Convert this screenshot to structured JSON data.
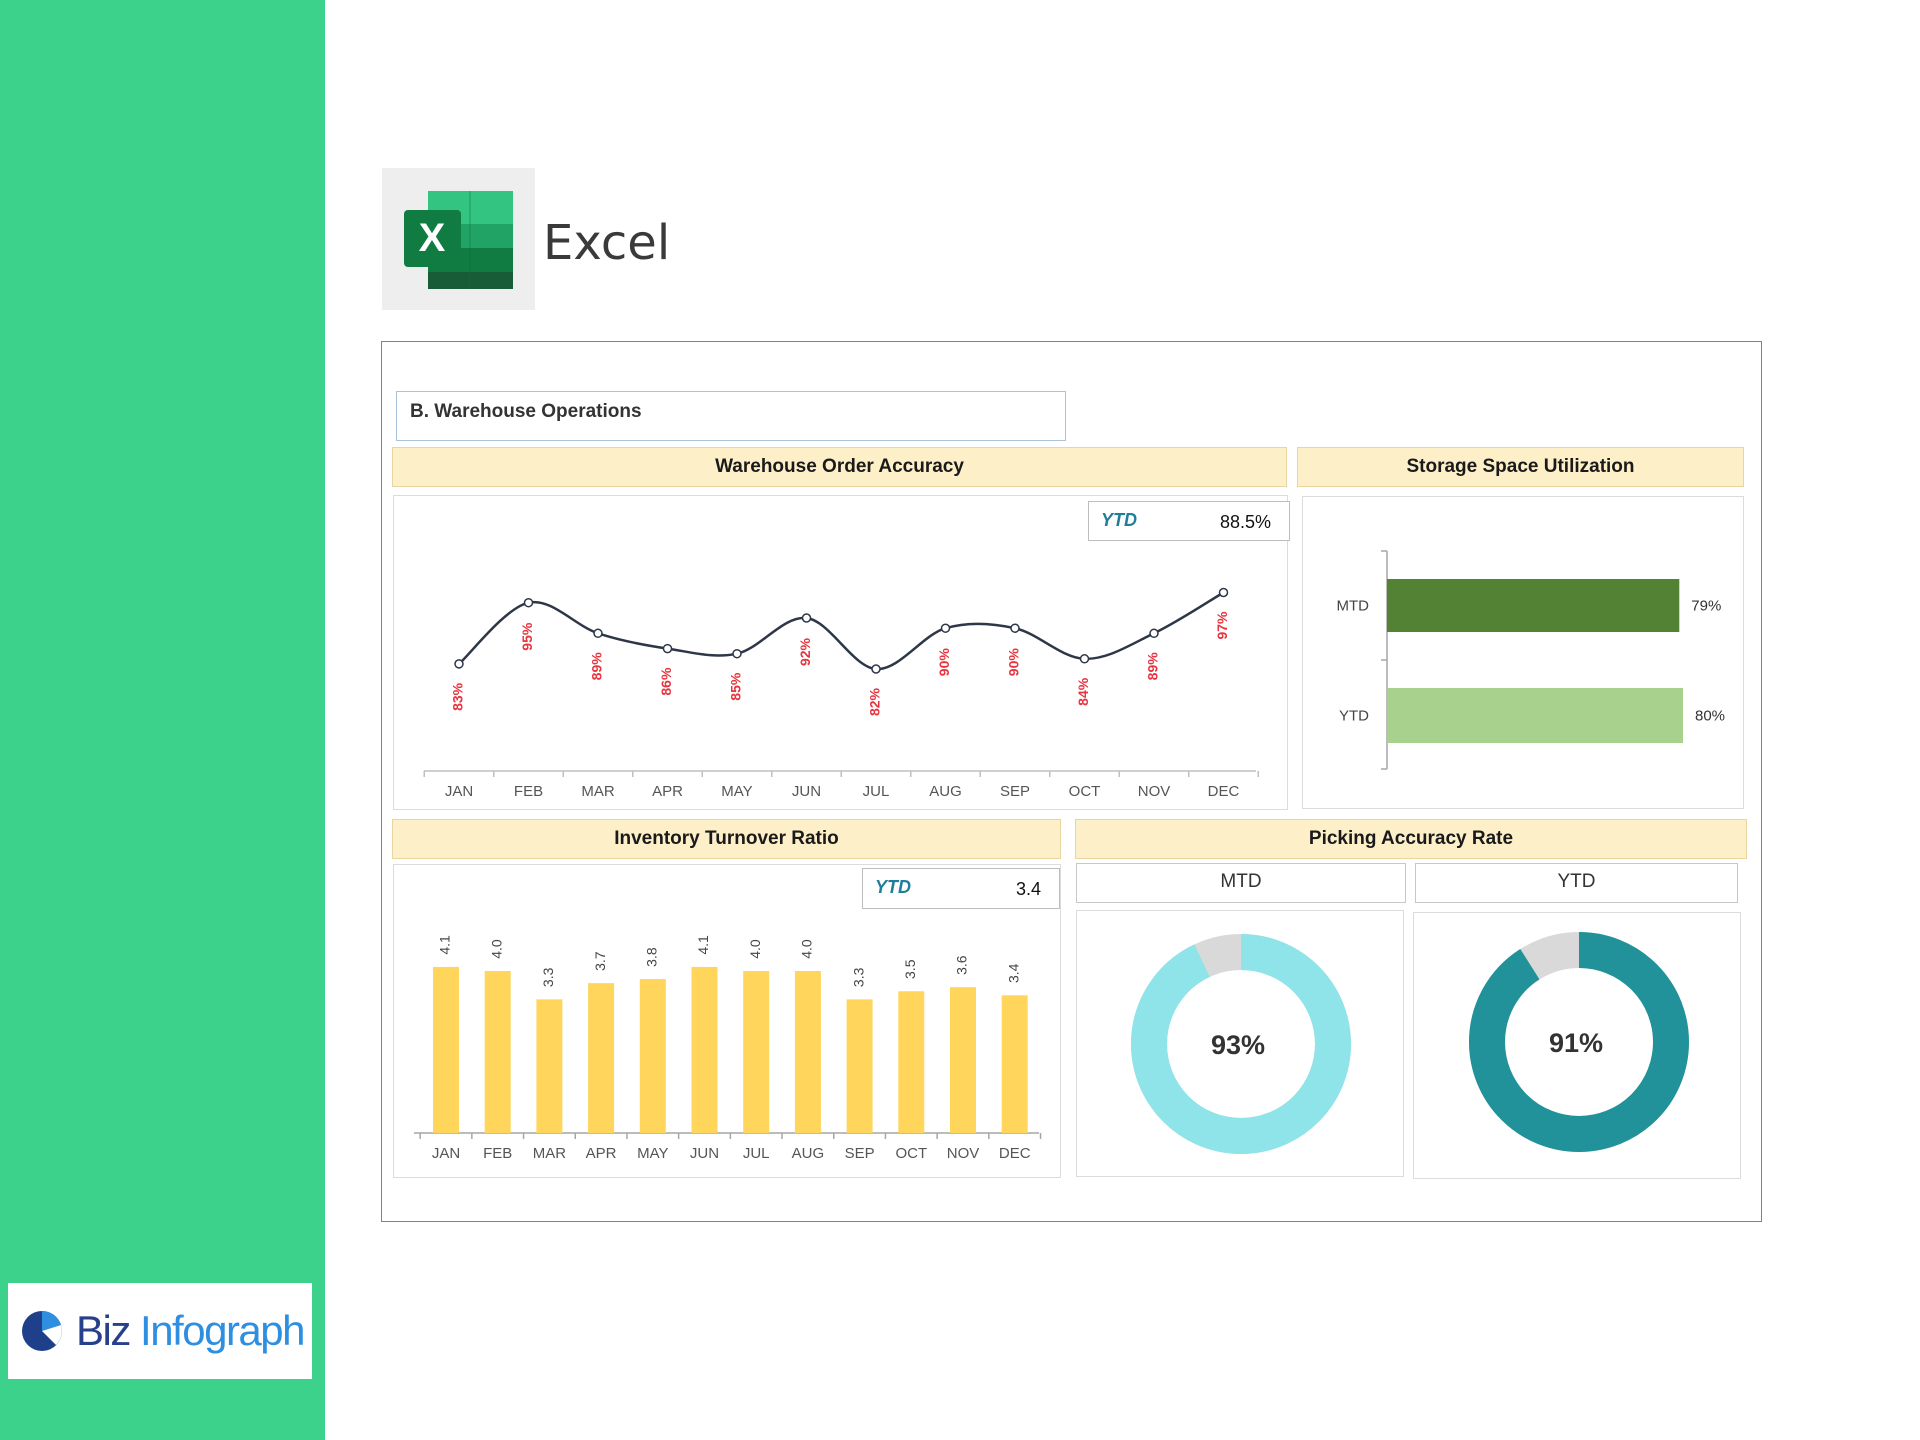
{
  "app": {
    "name": "Excel",
    "icon": "excel-icon"
  },
  "brand": {
    "name_part1": "Biz",
    "name_part2": "Infograph",
    "icon": "pie-logo-icon"
  },
  "section": {
    "title": "B. Warehouse Operations"
  },
  "colors": {
    "sidebar": "#3dd28b",
    "header_bg": "#fdefc8",
    "line": "#2d3748",
    "line_label": "#e8343f",
    "bar_yellow": "#ffd55c",
    "mtd_dark_green": "#548235",
    "ytd_light_green": "#a9d18e",
    "donut_light": "#8ee4e8",
    "donut_dark": "#21929a",
    "donut_rest": "#d9d9d9",
    "ytd_label": "#1f7f9a"
  },
  "order_accuracy": {
    "title": "Warehouse Order Accuracy",
    "ytd_label": "YTD",
    "ytd_value": "88.5%",
    "chart_data": {
      "type": "line",
      "categories": [
        "JAN",
        "FEB",
        "MAR",
        "APR",
        "MAY",
        "JUN",
        "JUL",
        "AUG",
        "SEP",
        "OCT",
        "NOV",
        "DEC"
      ],
      "values": [
        83,
        95,
        89,
        86,
        85,
        92,
        82,
        90,
        90,
        84,
        89,
        97
      ],
      "labels": [
        "83%",
        "95%",
        "89%",
        "86%",
        "85%",
        "92%",
        "82%",
        "90%",
        "90%",
        "84%",
        "89%",
        "97%"
      ]
    }
  },
  "storage": {
    "title": "Storage Space Utilization",
    "chart_data": {
      "type": "bar",
      "orientation": "horizontal",
      "categories": [
        "MTD",
        "YTD"
      ],
      "values": [
        79,
        80
      ],
      "labels": [
        "79%",
        "80%"
      ]
    }
  },
  "turnover": {
    "title": "Inventory Turnover Ratio",
    "ytd_label": "YTD",
    "ytd_value": "3.4",
    "chart_data": {
      "type": "bar",
      "categories": [
        "JAN",
        "FEB",
        "MAR",
        "APR",
        "MAY",
        "JUN",
        "JUL",
        "AUG",
        "SEP",
        "OCT",
        "NOV",
        "DEC"
      ],
      "values": [
        4.1,
        4.0,
        3.3,
        3.7,
        3.8,
        4.1,
        4.0,
        4.0,
        3.3,
        3.5,
        3.6,
        3.4
      ],
      "labels": [
        "4.1",
        "4.0",
        "3.3",
        "3.7",
        "3.8",
        "4.1",
        "4.0",
        "4.0",
        "3.3",
        "3.5",
        "3.6",
        "3.4"
      ]
    }
  },
  "picking": {
    "title": "Picking Accuracy Rate",
    "mtd_label": "MTD",
    "ytd_label": "YTD",
    "chart_data": [
      {
        "type": "pie",
        "name": "MTD",
        "value": 93,
        "label": "93%"
      },
      {
        "type": "pie",
        "name": "YTD",
        "value": 91,
        "label": "91%"
      }
    ]
  }
}
